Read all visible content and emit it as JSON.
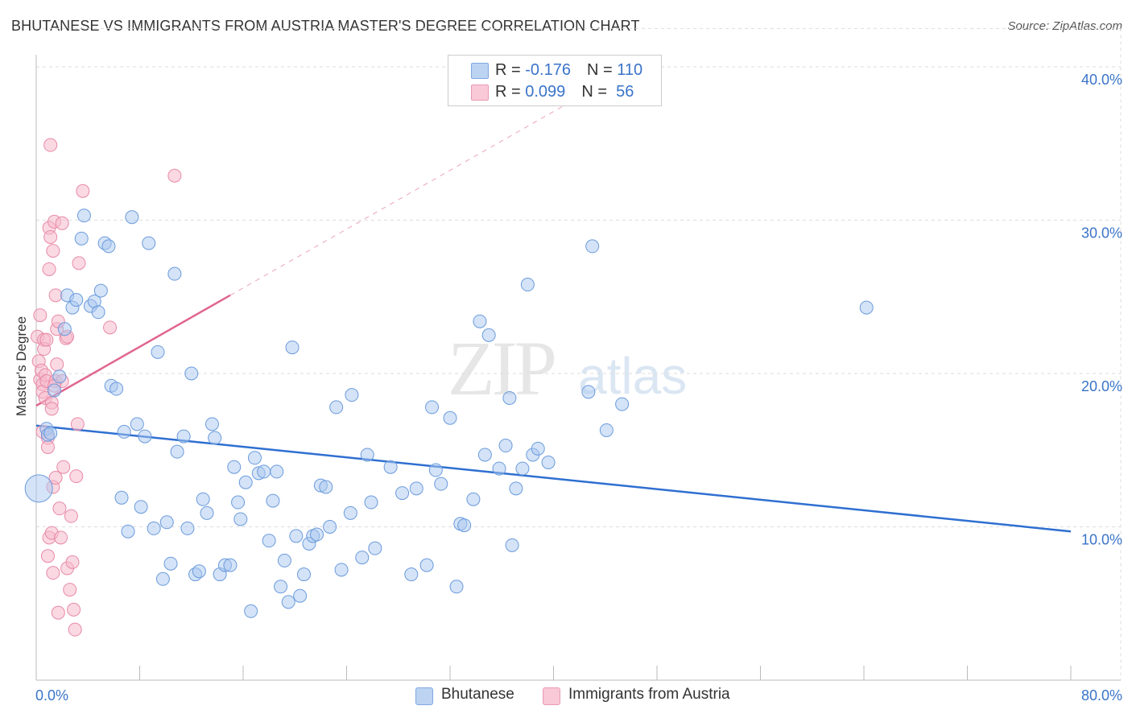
{
  "header": {
    "title": "BHUTANESE VS IMMIGRANTS FROM AUSTRIA MASTER'S DEGREE CORRELATION CHART",
    "source": "Source: ZipAtlas.com"
  },
  "watermark": {
    "zip": "ZIP",
    "atlas": "atlas"
  },
  "legend": {
    "r_label": "R =",
    "n_label": "N =",
    "rows": [
      {
        "r": "-0.176",
        "n": "110"
      },
      {
        "r": "0.099",
        "n": "56"
      }
    ]
  },
  "bottom_legend": {
    "series1": "Bhutanese",
    "series2": "Immigrants from Austria"
  },
  "colors": {
    "blue_fill": "#a9c7ef",
    "blue_stroke": "#6b9bdc",
    "blue_line": "#2f6fd1",
    "pink_fill": "#f6b9cc",
    "pink_stroke": "#e88aa8",
    "pink_line": "#e0668f",
    "grid": "#dddddd",
    "tick_text": "#3a74c9"
  },
  "chart_data": {
    "type": "scatter",
    "title": "BHUTANESE VS IMMIGRANTS FROM AUSTRIA MASTER'S DEGREE CORRELATION CHART",
    "xlabel": "",
    "ylabel": "Master's Degree",
    "xlim": [
      0,
      80
    ],
    "ylim": [
      0,
      42.5
    ],
    "x_tick_labels": [
      "0.0%",
      "80.0%"
    ],
    "y_ticks": [
      10,
      20,
      30,
      40
    ],
    "y_tick_labels": [
      "10.0%",
      "20.0%",
      "30.0%",
      "40.0%"
    ],
    "grid": true,
    "legend_position": "top-center",
    "series": [
      {
        "name": "Bhutanese",
        "R": -0.176,
        "N": 110,
        "trend": {
          "x": [
            0,
            80
          ],
          "y": [
            16.6,
            9.7
          ],
          "style": "solid"
        },
        "points": [
          [
            0.2,
            12.5
          ],
          [
            0.8,
            16.4
          ],
          [
            0.9,
            16.0
          ],
          [
            1.1,
            16.1
          ],
          [
            1.4,
            18.9
          ],
          [
            1.8,
            19.8
          ],
          [
            2.2,
            22.9
          ],
          [
            2.4,
            25.1
          ],
          [
            2.8,
            24.3
          ],
          [
            3.1,
            24.8
          ],
          [
            3.5,
            28.8
          ],
          [
            3.7,
            30.3
          ],
          [
            4.2,
            24.4
          ],
          [
            4.5,
            24.7
          ],
          [
            4.8,
            24.0
          ],
          [
            5.0,
            25.4
          ],
          [
            5.3,
            28.5
          ],
          [
            5.6,
            28.3
          ],
          [
            5.8,
            19.2
          ],
          [
            6.2,
            19.0
          ],
          [
            6.6,
            11.9
          ],
          [
            6.8,
            16.2
          ],
          [
            7.1,
            9.7
          ],
          [
            7.4,
            30.2
          ],
          [
            7.8,
            16.7
          ],
          [
            8.1,
            11.3
          ],
          [
            8.4,
            15.9
          ],
          [
            8.7,
            28.5
          ],
          [
            9.1,
            9.9
          ],
          [
            9.4,
            21.4
          ],
          [
            9.8,
            6.6
          ],
          [
            10.1,
            10.3
          ],
          [
            10.4,
            7.6
          ],
          [
            10.7,
            26.5
          ],
          [
            10.9,
            14.9
          ],
          [
            11.4,
            15.9
          ],
          [
            11.7,
            9.9
          ],
          [
            12.0,
            20.0
          ],
          [
            12.3,
            6.9
          ],
          [
            12.6,
            7.1
          ],
          [
            12.9,
            11.8
          ],
          [
            13.2,
            10.9
          ],
          [
            13.6,
            16.7
          ],
          [
            13.8,
            15.8
          ],
          [
            14.2,
            6.9
          ],
          [
            14.6,
            7.5
          ],
          [
            15.0,
            7.5
          ],
          [
            15.3,
            13.9
          ],
          [
            15.6,
            11.6
          ],
          [
            15.8,
            10.5
          ],
          [
            16.2,
            12.9
          ],
          [
            16.6,
            4.5
          ],
          [
            16.9,
            14.5
          ],
          [
            17.2,
            13.5
          ],
          [
            17.6,
            13.6
          ],
          [
            18.0,
            9.1
          ],
          [
            18.3,
            11.7
          ],
          [
            18.6,
            13.6
          ],
          [
            18.9,
            6.1
          ],
          [
            19.2,
            7.8
          ],
          [
            19.5,
            5.1
          ],
          [
            19.8,
            21.7
          ],
          [
            20.1,
            9.4
          ],
          [
            20.4,
            5.5
          ],
          [
            20.7,
            6.9
          ],
          [
            21.1,
            8.9
          ],
          [
            21.4,
            9.4
          ],
          [
            21.7,
            9.5
          ],
          [
            22.0,
            12.7
          ],
          [
            22.4,
            12.6
          ],
          [
            22.7,
            10.0
          ],
          [
            23.2,
            17.8
          ],
          [
            23.6,
            7.2
          ],
          [
            24.3,
            10.9
          ],
          [
            24.4,
            18.6
          ],
          [
            25.2,
            8.0
          ],
          [
            25.6,
            14.7
          ],
          [
            25.9,
            11.6
          ],
          [
            26.2,
            8.6
          ],
          [
            27.4,
            13.9
          ],
          [
            28.3,
            12.2
          ],
          [
            29.0,
            6.9
          ],
          [
            29.4,
            12.5
          ],
          [
            30.2,
            7.5
          ],
          [
            30.6,
            17.8
          ],
          [
            30.9,
            13.7
          ],
          [
            31.3,
            12.8
          ],
          [
            32.0,
            17.1
          ],
          [
            32.5,
            6.1
          ],
          [
            32.8,
            10.2
          ],
          [
            33.1,
            10.1
          ],
          [
            33.8,
            11.8
          ],
          [
            34.3,
            23.4
          ],
          [
            34.7,
            14.7
          ],
          [
            35.0,
            22.5
          ],
          [
            35.8,
            13.8
          ],
          [
            36.3,
            15.3
          ],
          [
            36.6,
            18.4
          ],
          [
            36.8,
            8.8
          ],
          [
            37.1,
            12.5
          ],
          [
            37.6,
            13.8
          ],
          [
            38.0,
            25.8
          ],
          [
            38.4,
            14.7
          ],
          [
            38.8,
            15.1
          ],
          [
            39.6,
            14.2
          ],
          [
            42.7,
            18.8
          ],
          [
            43.0,
            28.3
          ],
          [
            44.1,
            16.3
          ],
          [
            45.3,
            18.0
          ],
          [
            64.2,
            24.3
          ]
        ]
      },
      {
        "name": "Immigrants from Austria",
        "R": 0.099,
        "N": 56,
        "trend": {
          "x": [
            0,
            15
          ],
          "y": [
            17.9,
            25.1
          ],
          "style": "solid",
          "extended_dashed": {
            "x": [
              15,
              44
            ],
            "y": [
              25.1,
              39.0
            ]
          }
        },
        "points": [
          [
            0.1,
            22.4
          ],
          [
            0.2,
            20.8
          ],
          [
            0.3,
            23.8
          ],
          [
            0.3,
            19.6
          ],
          [
            0.4,
            20.2
          ],
          [
            0.5,
            19.3
          ],
          [
            0.5,
            18.8
          ],
          [
            0.5,
            16.2
          ],
          [
            0.6,
            22.2
          ],
          [
            0.6,
            21.6
          ],
          [
            0.7,
            19.9
          ],
          [
            0.7,
            18.4
          ],
          [
            0.8,
            22.2
          ],
          [
            0.8,
            19.5
          ],
          [
            0.9,
            15.8
          ],
          [
            0.9,
            8.1
          ],
          [
            1.0,
            29.5
          ],
          [
            1.0,
            26.8
          ],
          [
            1.0,
            9.3
          ],
          [
            1.1,
            34.9
          ],
          [
            1.1,
            28.9
          ],
          [
            1.2,
            18.1
          ],
          [
            1.2,
            17.7
          ],
          [
            1.2,
            9.6
          ],
          [
            1.3,
            12.6
          ],
          [
            1.3,
            7.0
          ],
          [
            1.3,
            28.0
          ],
          [
            1.4,
            29.9
          ],
          [
            1.5,
            25.1
          ],
          [
            1.5,
            19.5
          ],
          [
            1.5,
            13.2
          ],
          [
            1.6,
            22.9
          ],
          [
            1.6,
            20.6
          ],
          [
            1.7,
            23.4
          ],
          [
            1.7,
            4.4
          ],
          [
            1.8,
            11.2
          ],
          [
            1.9,
            9.3
          ],
          [
            2.0,
            29.8
          ],
          [
            2.0,
            19.5
          ],
          [
            2.1,
            13.9
          ],
          [
            2.3,
            22.3
          ],
          [
            2.4,
            7.3
          ],
          [
            2.4,
            22.4
          ],
          [
            2.6,
            5.9
          ],
          [
            2.7,
            10.7
          ],
          [
            2.8,
            7.7
          ],
          [
            2.9,
            4.6
          ],
          [
            3.0,
            3.3
          ],
          [
            3.1,
            13.3
          ],
          [
            3.2,
            16.7
          ],
          [
            3.3,
            27.2
          ],
          [
            3.6,
            31.9
          ],
          [
            5.7,
            23.0
          ],
          [
            10.7,
            32.9
          ],
          [
            0.9,
            15.2
          ],
          [
            1.4,
            19.2
          ]
        ]
      }
    ]
  }
}
